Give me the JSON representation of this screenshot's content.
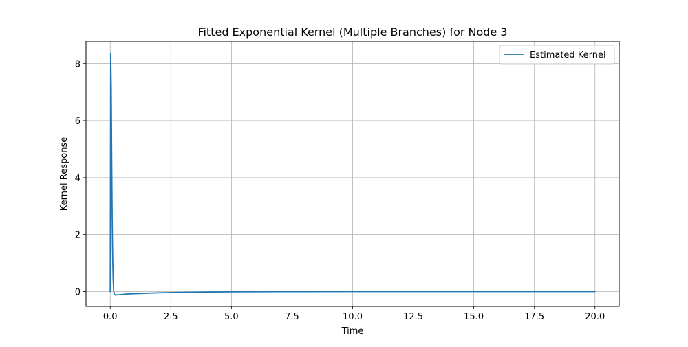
{
  "chart_data": {
    "type": "line",
    "title": "Fitted Exponential Kernel (Multiple Branches) for Node 3",
    "xlabel": "Time",
    "ylabel": "Kernel Response",
    "xlim": [
      -1.0,
      21.0
    ],
    "ylim": [
      -0.52,
      8.78
    ],
    "grid": true,
    "legend_placement": "upper right",
    "x_ticks": [
      0.0,
      2.5,
      5.0,
      7.5,
      10.0,
      12.5,
      15.0,
      17.5,
      20.0
    ],
    "x_tick_labels": [
      "0.0",
      "2.5",
      "5.0",
      "7.5",
      "10.0",
      "12.5",
      "15.0",
      "17.5",
      "20.0"
    ],
    "y_ticks": [
      0,
      2,
      4,
      6,
      8
    ],
    "y_tick_labels": [
      "0",
      "2",
      "4",
      "6",
      "8"
    ],
    "series": [
      {
        "name": "Estimated Kernel",
        "color": "#1f77b4",
        "x": [
          0.0,
          0.02,
          0.04,
          0.06,
          0.08,
          0.1,
          0.12,
          0.14,
          0.16,
          0.18,
          0.2,
          0.25,
          0.3,
          0.4,
          0.5,
          0.75,
          1.0,
          1.5,
          2.0,
          2.5,
          3.0,
          4.0,
          5.0,
          6.0,
          7.0,
          8.0,
          10.0,
          12.0,
          15.0,
          17.5,
          20.0
        ],
        "y": [
          0.0,
          8.35,
          7.2,
          4.7,
          2.6,
          1.25,
          0.45,
          0.05,
          -0.08,
          -0.11,
          -0.12,
          -0.12,
          -0.115,
          -0.11,
          -0.1,
          -0.085,
          -0.075,
          -0.06,
          -0.045,
          -0.035,
          -0.027,
          -0.017,
          -0.01,
          -0.006,
          -0.004,
          -0.002,
          -0.001,
          0.0,
          0.0,
          0.0,
          0.0
        ]
      }
    ],
    "colors": {
      "grid": "#b0b0b0",
      "axes": "#000000",
      "legend_border": "#cccccc"
    }
  }
}
